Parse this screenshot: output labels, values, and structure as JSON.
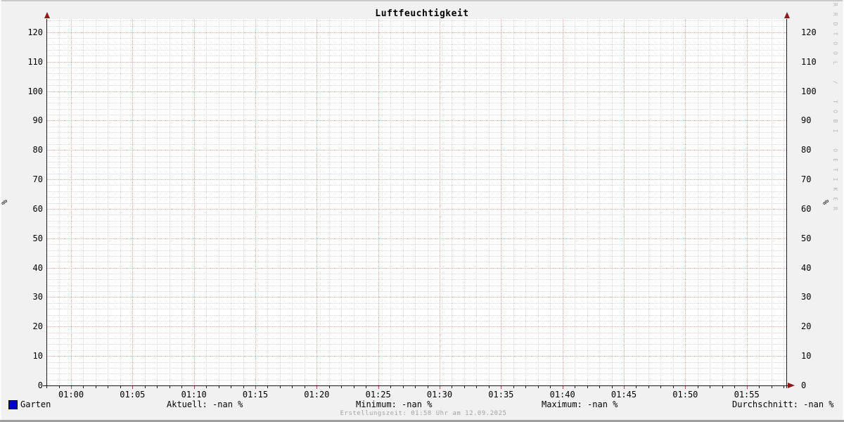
{
  "title": "Luftfeuchtigkeit",
  "y_unit_label": "%",
  "watermark": "RRDTOOL / TOBI OETIKER",
  "footer": "Erstellungszeit: 01:58 Uhr am 12.09.2025",
  "legend": {
    "series": {
      "label": "Garten",
      "color": "#0000c8"
    },
    "stats": [
      "Aktuell: -nan %",
      "Minimum: -nan %",
      "Maximum: -nan %",
      "Durchschnitt: -nan %"
    ]
  },
  "chart_data": {
    "type": "line",
    "title": "Luftfeuchtigkeit",
    "xlabel": "",
    "ylabel": "%",
    "ylim": [
      0,
      124.5
    ],
    "y_ticks": [
      0,
      10,
      20,
      30,
      40,
      50,
      60,
      70,
      80,
      90,
      100,
      110,
      120
    ],
    "y_minor_step": 2,
    "x_tick_labels": [
      "01:00",
      "01:05",
      "01:10",
      "01:15",
      "01:20",
      "01:25",
      "01:30",
      "01:35",
      "01:40",
      "01:45",
      "01:50",
      "01:55"
    ],
    "x_minor_step_minutes": 1,
    "grid": true,
    "legend_position": "bottom",
    "series": [
      {
        "name": "Garten",
        "color": "#0000c8",
        "values": [],
        "note": "no data drawn - all values are -nan"
      }
    ]
  },
  "colors": {
    "background": "#f1f1f1",
    "canvas": "#ffffff",
    "major_grid": "#ec9f9f",
    "minor_grid": "#d6d6d6",
    "axis": "#1c1c1c",
    "arrow": "#8f1a1a",
    "tick_minor": "#1c1c1c",
    "tick_major": "#c24040",
    "text": "#000000",
    "footer_text": "#a3a3a3",
    "watermark_text": "#b8b8b8"
  }
}
